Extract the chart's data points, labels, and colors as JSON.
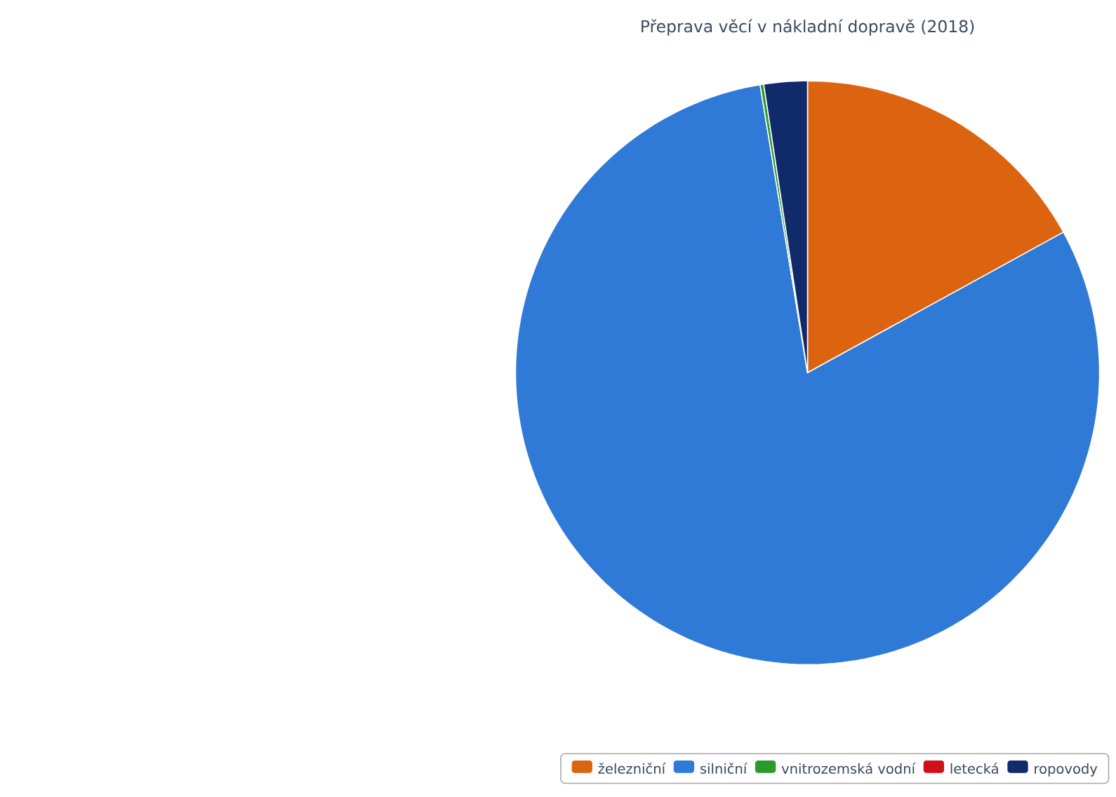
{
  "chart_data": {
    "type": "pie",
    "title": "Přeprava věcí v nákladní dopravě (2018)",
    "categories": [
      "železniční",
      "silniční",
      "vnitrozemská vodní",
      "letecká",
      "ropovody"
    ],
    "values": [
      17.0,
      80.4,
      0.2,
      0.0,
      2.4
    ],
    "colors": [
      "#dc6410",
      "#2f7ad6",
      "#2a9a2a",
      "#d01018",
      "#102a6a"
    ],
    "legend": "bottom right"
  }
}
